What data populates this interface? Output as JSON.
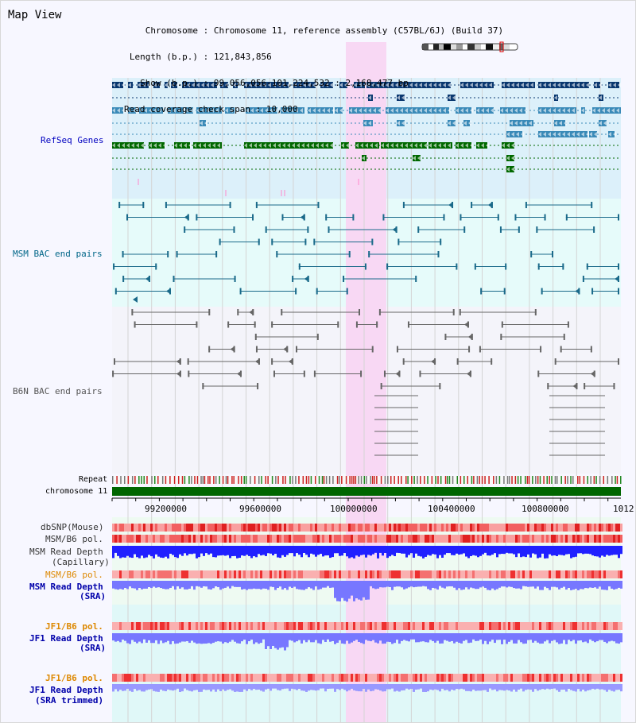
{
  "title": "Map View",
  "header": {
    "rows": [
      {
        "label": "Chromosome",
        "value": "Chromosome 11, reference assembly (C57BL/6J) (Build 37)"
      },
      {
        "label": "Length (b.p.)",
        "value": "121,843,856"
      },
      {
        "label": "Show (b.p.)",
        "value": "99,056,056-101,224,532 : 2,168,477 bp"
      },
      {
        "label": "Read coverage check span",
        "value": "10,000"
      }
    ]
  },
  "tracks": {
    "refseq": "RefSeq Genes",
    "msm_bac": "MSM BAC end pairs",
    "b6n_bac": "B6N BAC end pairs",
    "repeat": "Repeat",
    "chromosome": "chromosome 11",
    "dbsnp": "dbSNP(Mouse)",
    "msm_b6_pol_1": "MSM/B6 pol.",
    "msm_depth_cap": "MSM Read Depth",
    "msm_depth_cap_sub": "(Capillary)",
    "msm_b6_pol_2": "MSM/B6 pol.",
    "msm_depth_sra": "MSM Read Depth",
    "msm_depth_sra_sub": "(SRA)",
    "jf1_b6_pol_1": "JF1/B6 pol.",
    "jf1_depth_sra": "JF1 Read Depth",
    "jf1_depth_sra_sub": "(SRA)",
    "jf1_b6_pol_2": "JF1/B6 pol.",
    "jf1_depth_trim": "JF1 Read Depth",
    "jf1_depth_trim_sub": "(SRA trimmed)"
  },
  "axis": {
    "ticks": [
      "99200000",
      "99600000",
      "100000000",
      "100400000",
      "100800000",
      "1012"
    ]
  },
  "colors": {
    "refseq_label": "#0000c0",
    "msm_bac_label": "#006688",
    "b6n_bac_label": "#555555",
    "pol_label_orange": "#dd8800",
    "depth_label_blue": "#0000aa",
    "highlight": "#f8d8f4",
    "gene_dark_blue": "#0a3870",
    "gene_mid_blue": "#3a8ab8",
    "gene_green": "#006800",
    "chrom_bar": "#006600",
    "depth_blue": "#2020ff",
    "depth_light": "#7777ff"
  }
}
